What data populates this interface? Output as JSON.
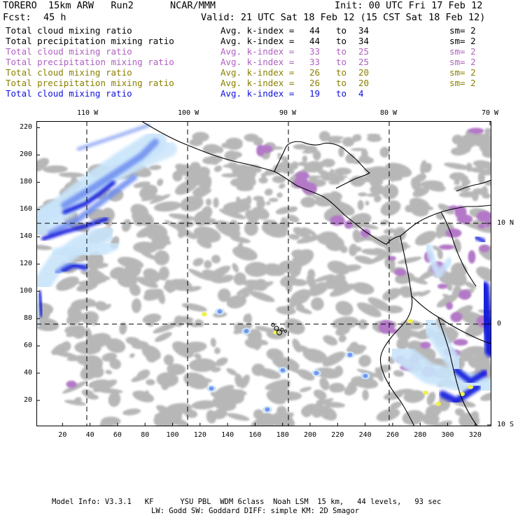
{
  "header": {
    "model": "TORERO  15km ARW   Run2",
    "org": "NCAR/MMM",
    "init": "Init: 00 UTC Fri 17 Feb 12",
    "fcst_label": "Fcst:",
    "fcst_value": "45 h",
    "valid": "Valid: 21 UTC Sat 18 Feb 12 (15 CST Sat 18 Feb 12)"
  },
  "legend": [
    {
      "name": "Total cloud mixing ratio",
      "kindex_label": "Avg. k-index =",
      "k_from": "44",
      "to": "to",
      "k_to": "34",
      "sm": "sm= 2",
      "color": "#000000"
    },
    {
      "name": "Total precipitation mixing ratio",
      "kindex_label": "Avg. k-index =",
      "k_from": "44",
      "to": "to",
      "k_to": "34",
      "sm": "sm= 2",
      "color": "#000000"
    },
    {
      "name": "Total cloud mixing ratio",
      "kindex_label": "Avg. k-index =",
      "k_from": "33",
      "to": "to",
      "k_to": "25",
      "sm": "sm= 2",
      "color": "#b060c0"
    },
    {
      "name": "Total precipitation mixing ratio",
      "kindex_label": "Avg. k-index =",
      "k_from": "33",
      "to": "to",
      "k_to": "25",
      "sm": "sm= 2",
      "color": "#b060c0"
    },
    {
      "name": "Total cloud mixing ratio",
      "kindex_label": "Avg. k-index =",
      "k_from": "26",
      "to": "to",
      "k_to": "20",
      "sm": "sm= 2",
      "color": "#8a8000"
    },
    {
      "name": "Total precipitation mixing ratio",
      "kindex_label": "Avg. k-index =",
      "k_from": "26",
      "to": "to",
      "k_to": "20",
      "sm": "sm= 2",
      "color": "#8a8000"
    },
    {
      "name": "Total cloud mixing ratio",
      "kindex_label": "Avg. k-index =",
      "k_from": "19",
      "to": "to",
      "k_to": "4",
      "sm": "",
      "color": "#1010e0"
    }
  ],
  "map": {
    "top_lon_labels": [
      "110 W",
      "100 W",
      "90 W",
      "80 W",
      "70 W"
    ],
    "right_lat_labels": [
      "10 N",
      "0",
      "10 S"
    ],
    "y_grid_labels": [
      "220",
      "200",
      "180",
      "160",
      "140",
      "120",
      "100",
      "80",
      "60",
      "40",
      "20"
    ],
    "x_grid_labels": [
      "20",
      "40",
      "60",
      "80",
      "100",
      "120",
      "140",
      "160",
      "180",
      "200",
      "220",
      "240",
      "260",
      "280",
      "300",
      "320"
    ],
    "colors": {
      "gray_field": "#b4b4b4",
      "light_blue": "#c8e4fa",
      "mid_blue": "#6c8cf0",
      "deep_blue": "#0a14dc",
      "purple": "#b478c8",
      "yellow": "#f0f050",
      "coast": "#000000",
      "grid": "#000000"
    }
  },
  "footer": {
    "line1": "Model Info: V3.3.1   KF      YSU PBL  WDM 6class  Noah LSM  15 km,   44 levels,   93 sec",
    "line2": "LW: Godd SW: Goddard DIFF: simple KM: 2D Smagor"
  }
}
